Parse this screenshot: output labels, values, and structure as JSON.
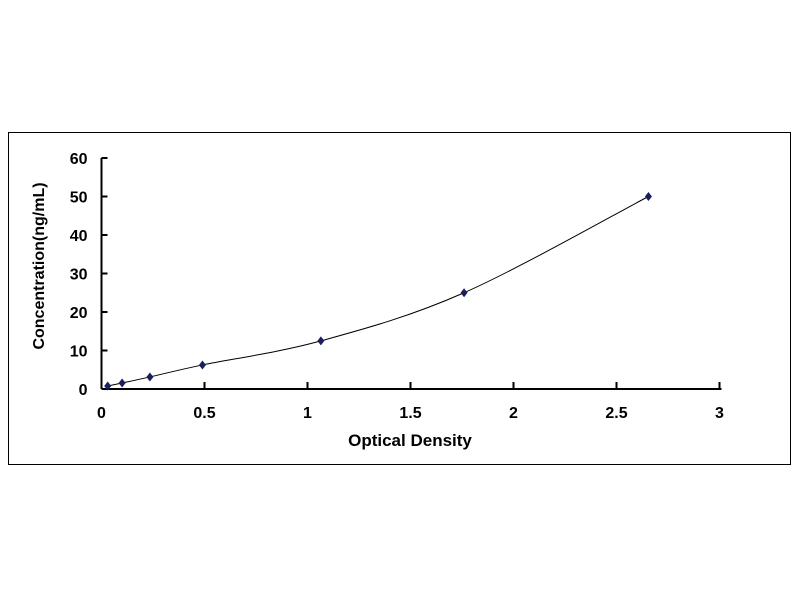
{
  "chart_data": {
    "type": "scatter",
    "title": "",
    "xlabel": "Optical Density",
    "ylabel": "Concentration(ng/mL)",
    "xlim": [
      0,
      3
    ],
    "ylim": [
      0,
      60
    ],
    "x_ticks": [
      "0",
      "0.5",
      "1",
      "1.5",
      "2",
      "2.5",
      "3"
    ],
    "y_ticks": [
      "0",
      "10",
      "20",
      "30",
      "40",
      "50",
      "60"
    ],
    "grid": false,
    "trendline": "smooth curve through points",
    "marker": "diamond",
    "marker_color": "#1a1f5c",
    "line_color": "#000000",
    "x": [
      0.03,
      0.1,
      0.235,
      0.49,
      1.065,
      1.76,
      2.655
    ],
    "y": [
      0.78,
      1.56,
      3.13,
      6.25,
      12.5,
      25,
      50
    ]
  }
}
